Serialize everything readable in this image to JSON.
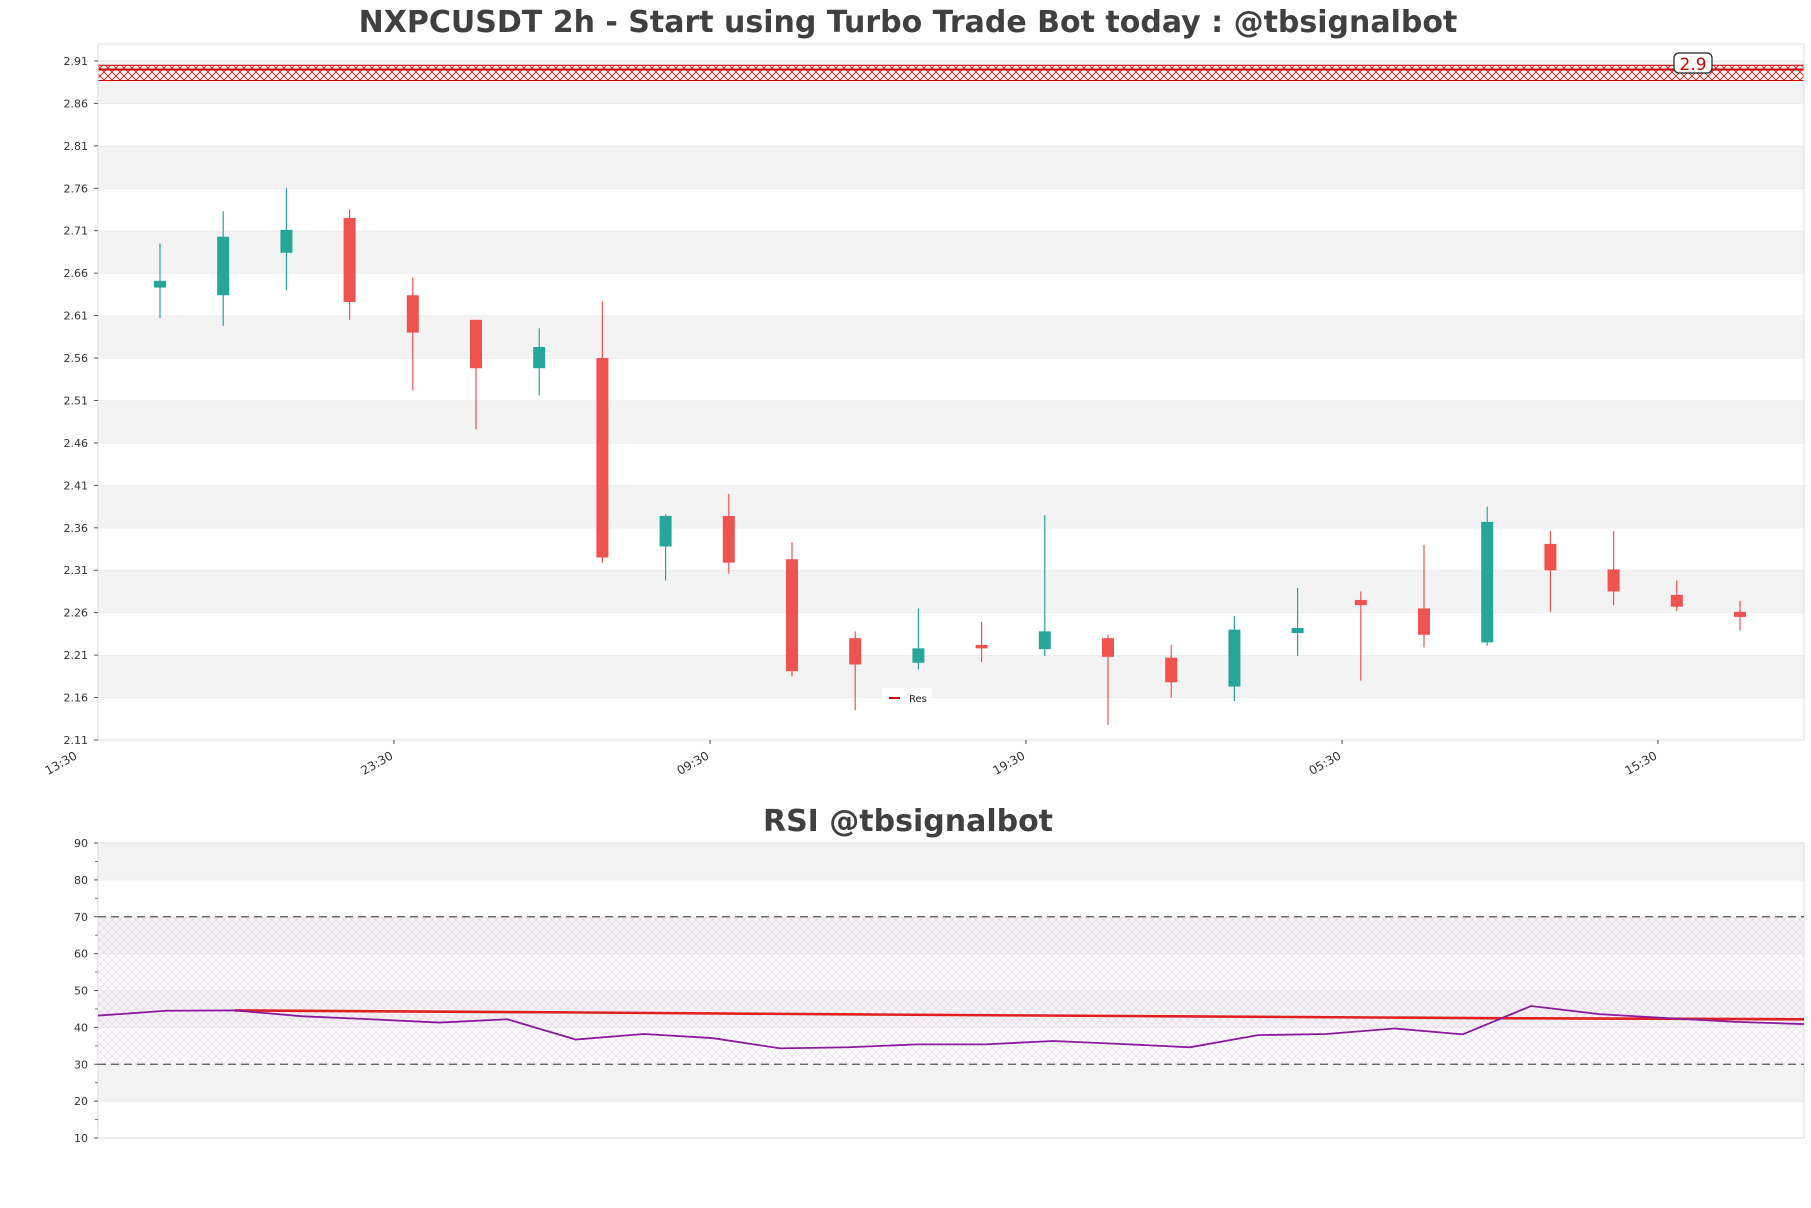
{
  "chart_data": [
    {
      "type": "candlestick",
      "title": "NXPCUSDT 2h - Start using Turbo Trade Bot today : @tbsignalbot",
      "ylim": [
        2.11,
        2.93
      ],
      "y_ticks": [
        "2.11",
        "2.16",
        "2.21",
        "2.26",
        "2.31",
        "2.36",
        "2.41",
        "2.46",
        "2.51",
        "2.56",
        "2.61",
        "2.66",
        "2.71",
        "2.76",
        "2.81",
        "2.86",
        "2.91"
      ],
      "x_ticks": [
        "13:30",
        "23:30",
        "09:30",
        "19:30",
        "05:30",
        "15:30"
      ],
      "colors": {
        "up": "#26a69a",
        "down": "#ef5350",
        "resistance": "#cc0000"
      },
      "candles": [
        {
          "o": 2.643,
          "h": 2.695,
          "l": 2.607,
          "c": 2.651
        },
        {
          "o": 2.634,
          "h": 2.733,
          "l": 2.598,
          "c": 2.703
        },
        {
          "o": 2.684,
          "h": 2.76,
          "l": 2.64,
          "c": 2.711
        },
        {
          "o": 2.725,
          "h": 2.735,
          "l": 2.605,
          "c": 2.626
        },
        {
          "o": 2.634,
          "h": 2.655,
          "l": 2.522,
          "c": 2.59
        },
        {
          "o": 2.605,
          "h": 2.605,
          "l": 2.476,
          "c": 2.548
        },
        {
          "o": 2.548,
          "h": 2.595,
          "l": 2.516,
          "c": 2.573
        },
        {
          "o": 2.56,
          "h": 2.627,
          "l": 2.319,
          "c": 2.325
        },
        {
          "o": 2.338,
          "h": 2.376,
          "l": 2.298,
          "c": 2.374
        },
        {
          "o": 2.374,
          "h": 2.4,
          "l": 2.306,
          "c": 2.319
        },
        {
          "o": 2.323,
          "h": 2.343,
          "l": 2.185,
          "c": 2.191
        },
        {
          "o": 2.23,
          "h": 2.238,
          "l": 2.145,
          "c": 2.199
        },
        {
          "o": 2.201,
          "h": 2.265,
          "l": 2.193,
          "c": 2.218
        },
        {
          "o": 2.222,
          "h": 2.249,
          "l": 2.202,
          "c": 2.218
        },
        {
          "o": 2.217,
          "h": 2.375,
          "l": 2.209,
          "c": 2.238
        },
        {
          "o": 2.23,
          "h": 2.234,
          "l": 2.128,
          "c": 2.208
        },
        {
          "o": 2.207,
          "h": 2.222,
          "l": 2.16,
          "c": 2.178
        },
        {
          "o": 2.173,
          "h": 2.256,
          "l": 2.156,
          "c": 2.24
        },
        {
          "o": 2.236,
          "h": 2.289,
          "l": 2.209,
          "c": 2.242
        },
        {
          "o": 2.275,
          "h": 2.285,
          "l": 2.18,
          "c": 2.269
        },
        {
          "o": 2.265,
          "h": 2.34,
          "l": 2.219,
          "c": 2.234
        },
        {
          "o": 2.225,
          "h": 2.385,
          "l": 2.221,
          "c": 2.367
        },
        {
          "o": 2.341,
          "h": 2.356,
          "l": 2.261,
          "c": 2.31
        },
        {
          "o": 2.311,
          "h": 2.356,
          "l": 2.269,
          "c": 2.285
        },
        {
          "o": 2.281,
          "h": 2.298,
          "l": 2.262,
          "c": 2.267
        },
        {
          "o": 2.261,
          "h": 2.274,
          "l": 2.239,
          "c": 2.255
        }
      ],
      "resistance": {
        "label": "2.9",
        "value": 2.9,
        "zone": [
          2.887,
          2.905
        ]
      },
      "legend": {
        "label": "Res",
        "placement": "bottom-center"
      }
    },
    {
      "type": "line",
      "title": "RSI @tbsignalbot",
      "ylim": [
        10,
        90
      ],
      "y_ticks": [
        "10",
        "20",
        "30",
        "40",
        "50",
        "60",
        "70",
        "80",
        "90"
      ],
      "levels": [
        30,
        70
      ],
      "series": [
        {
          "values": [
            43.2,
            44.5,
            44.6,
            43.0,
            42.2,
            41.3,
            42.2,
            36.7,
            38.2,
            37.1,
            34.3,
            34.6,
            35.4,
            35.4,
            36.3,
            35.5,
            34.6,
            37.9,
            38.2,
            39.7,
            38.1,
            45.8,
            43.6,
            42.5,
            41.5,
            40.9
          ]
        },
        {
          "values": [
            44.6,
            44.1,
            43.5,
            43.0,
            42.5,
            42.2
          ]
        }
      ],
      "colors": {
        "rsi": "#8b1a9e",
        "trend": "#e02020"
      }
    }
  ]
}
